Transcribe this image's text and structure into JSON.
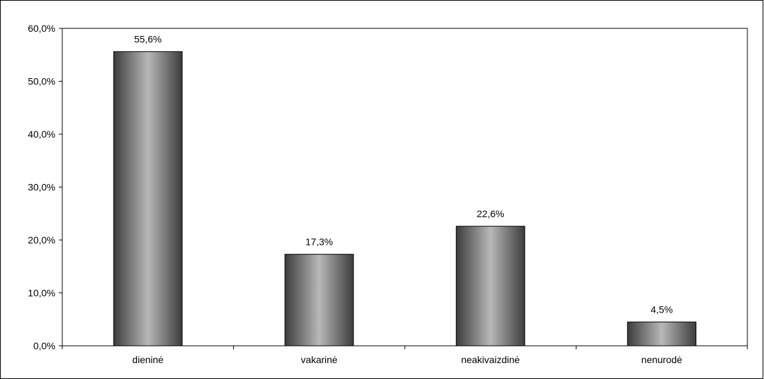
{
  "chart_data": {
    "type": "bar",
    "title": "",
    "xlabel": "",
    "ylabel": "",
    "categories": [
      "dieninė",
      "vakarinė",
      "neakivaizdinė",
      "nenurodė"
    ],
    "values": [
      55.6,
      17.3,
      22.6,
      4.5
    ],
    "data_labels": [
      "55,6%",
      "17,3%",
      "22,6%",
      "4,5%"
    ],
    "ylim": [
      0,
      60
    ],
    "y_ticks": [
      0,
      10,
      20,
      30,
      40,
      50,
      60
    ],
    "y_tick_labels": [
      "0,0%",
      "10,0%",
      "20,0%",
      "30,0%",
      "40,0%",
      "50,0%",
      "60,0%"
    ],
    "grid": false,
    "legend": "none",
    "colors": {
      "bar_dark": "#3c3c3c",
      "bar_light": "#b8b8b8",
      "axis": "#000000",
      "frame": "#000000"
    }
  }
}
